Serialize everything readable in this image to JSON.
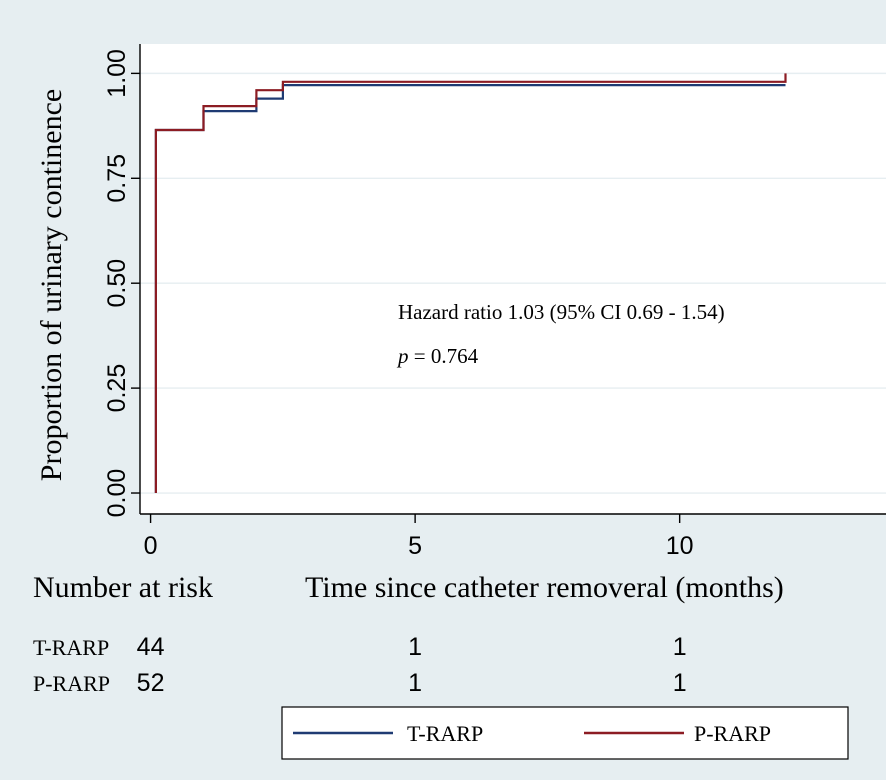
{
  "chart_data": {
    "type": "line",
    "subtype": "kaplan-meier-step",
    "ylabel": "Proportion of urinary continence",
    "xlabel": "Time since catheter removeral (months)",
    "xlim": [
      -0.2,
      13.9
    ],
    "ylim": [
      -0.05,
      1.07
    ],
    "xticks": [
      0,
      5,
      10
    ],
    "xtick_labels": [
      "0",
      "5",
      "10"
    ],
    "yticks": [
      0,
      0.25,
      0.5,
      0.75,
      1
    ],
    "ytick_labels": [
      "0.00",
      "0.25",
      "0.50",
      "0.75",
      "1.00"
    ],
    "grid": true,
    "series": [
      {
        "name": "T-RARP",
        "color": "#1f3b73",
        "points": [
          [
            0.1,
            0
          ],
          [
            0.1,
            0.865
          ],
          [
            1.0,
            0.865
          ],
          [
            1.0,
            0.91
          ],
          [
            2.0,
            0.91
          ],
          [
            2.0,
            0.94
          ],
          [
            2.5,
            0.94
          ],
          [
            2.5,
            0.972
          ],
          [
            12.0,
            0.972
          ]
        ]
      },
      {
        "name": "P-RARP",
        "color": "#8c1c23",
        "points": [
          [
            0.1,
            0
          ],
          [
            0.1,
            0.865
          ],
          [
            1.0,
            0.865
          ],
          [
            1.0,
            0.922
          ],
          [
            2.0,
            0.922
          ],
          [
            2.0,
            0.96
          ],
          [
            2.5,
            0.96
          ],
          [
            2.5,
            0.98
          ],
          [
            12.0,
            0.98
          ],
          [
            12.0,
            1.0
          ]
        ]
      }
    ],
    "annotations": {
      "hazard_text": "Hazard ratio 1.03 (95% CI 0.69 - 1.54)",
      "p_symbol": "p",
      "p_text": " = 0.764"
    },
    "risk_table": {
      "title": "Number at risk",
      "rows": [
        {
          "label": "T-RARP",
          "values": [
            {
              "x": 0,
              "v": "44"
            },
            {
              "x": 5,
              "v": "1"
            },
            {
              "x": 10,
              "v": "1"
            }
          ]
        },
        {
          "label": "P-RARP",
          "values": [
            {
              "x": 0,
              "v": "52"
            },
            {
              "x": 5,
              "v": "1"
            },
            {
              "x": 10,
              "v": "1"
            }
          ]
        }
      ]
    },
    "legend": {
      "position": "bottom",
      "entries": [
        {
          "name": "T-RARP",
          "color": "#1f3b73"
        },
        {
          "name": "P-RARP",
          "color": "#8c1c23"
        }
      ]
    }
  }
}
